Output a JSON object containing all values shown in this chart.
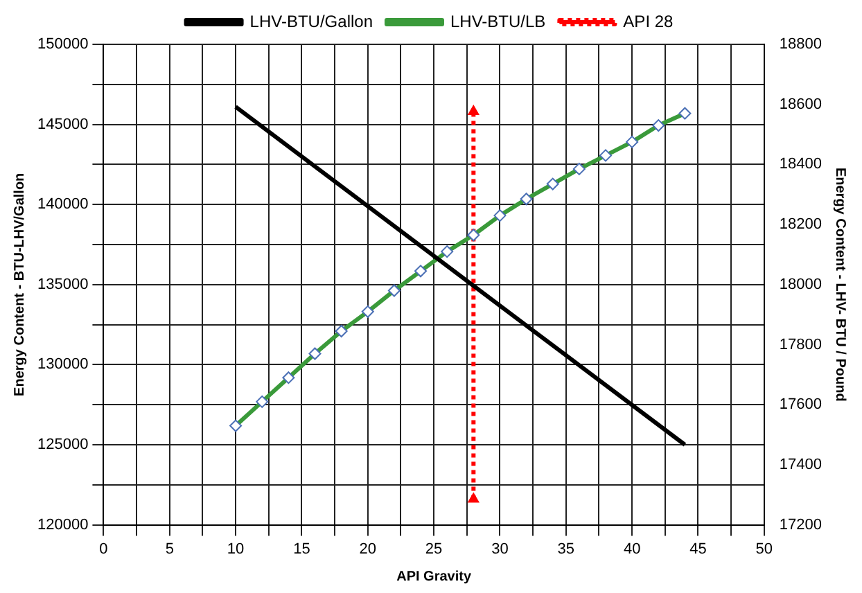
{
  "chart_data": {
    "type": "line",
    "xlabel": "API Gravity",
    "ylabel": "Energy Content - BTU-LHV/Gallon",
    "y2label": "Energy Content - LHV- BTU / Pound",
    "xlim": [
      0,
      50
    ],
    "xticks": [
      0,
      {
        "value": 2.5,
        "label": null
      },
      5,
      {
        "value": 7.5,
        "label": null
      },
      10,
      {
        "value": 12.5,
        "label": null
      },
      15,
      {
        "value": 17.5,
        "label": null
      },
      20,
      {
        "value": 22.5,
        "label": null
      },
      25,
      {
        "value": 27.5,
        "label": null
      },
      30,
      {
        "value": 32.5,
        "label": null
      },
      35,
      {
        "value": 37.5,
        "label": null
      },
      40,
      {
        "value": 42.5,
        "label": null
      },
      45,
      {
        "value": 47.5,
        "label": null
      },
      50
    ],
    "ylim": [
      120000,
      150000
    ],
    "yticks": [
      120000,
      {
        "value": 122500,
        "label": null
      },
      125000,
      {
        "value": 127500,
        "label": null
      },
      130000,
      {
        "value": 132500,
        "label": null
      },
      135000,
      {
        "value": 137500,
        "label": null
      },
      140000,
      {
        "value": 142500,
        "label": null
      },
      145000,
      {
        "value": 147500,
        "label": null
      },
      150000
    ],
    "y2lim": [
      17200,
      18800
    ],
    "y2ticks": [
      17200,
      17400,
      17600,
      17800,
      18000,
      18200,
      18400,
      18600,
      18800
    ],
    "grid": true,
    "legend": "top",
    "series": [
      {
        "name": "LHV-BTU/Gallon",
        "color": "#000000",
        "marker": "none",
        "line_style": "solid",
        "x": [
          10,
          44
        ],
        "values": [
          146100,
          125000
        ]
      },
      {
        "name": "LHV-BTU/LB",
        "color": "#3a9a3a",
        "marker": "diamond",
        "line_style": "solid",
        "axis": "y2",
        "x": [
          10,
          12,
          14,
          16,
          18,
          20,
          22,
          24,
          26,
          28,
          30,
          32,
          34,
          36,
          38,
          40,
          42,
          44
        ],
        "values": [
          17530,
          17610,
          17690,
          17770,
          17845,
          17910,
          17980,
          18045,
          18110,
          18165,
          18230,
          18285,
          18335,
          18385,
          18430,
          18475,
          18530,
          18570
        ]
      },
      {
        "name": "API 28",
        "color": "#ff0000",
        "marker": "triangle",
        "line_style": "dotted",
        "x": [
          28,
          28
        ],
        "values": [
          121600,
          145800
        ]
      }
    ]
  }
}
